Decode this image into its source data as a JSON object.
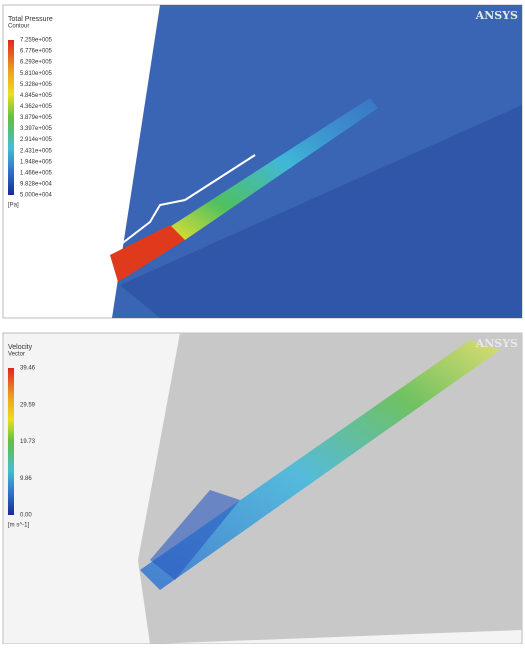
{
  "panels": [
    {
      "legend": {
        "title": "Total Pressure",
        "subtitle": "Contour",
        "labels": [
          "7.259e+005",
          "6.776e+005",
          "6.293e+005",
          "5.810e+005",
          "5.328e+005",
          "4.845e+005",
          "4.362e+005",
          "3.879e+005",
          "3.397e+005",
          "2.914e+005",
          "2.431e+005",
          "1.948e+005",
          "1.466e+005",
          "9.828e+004",
          "5.000e+004"
        ],
        "unit": "[Pa]"
      },
      "logo": "ANSYS"
    },
    {
      "legend": {
        "title": "Velocity",
        "subtitle": "Vector",
        "labels": [
          "39.46",
          "29.59",
          "19.73",
          "9.86",
          "0.00"
        ],
        "unit": "[m s^-1]"
      },
      "logo": "ANSYS"
    }
  ]
}
